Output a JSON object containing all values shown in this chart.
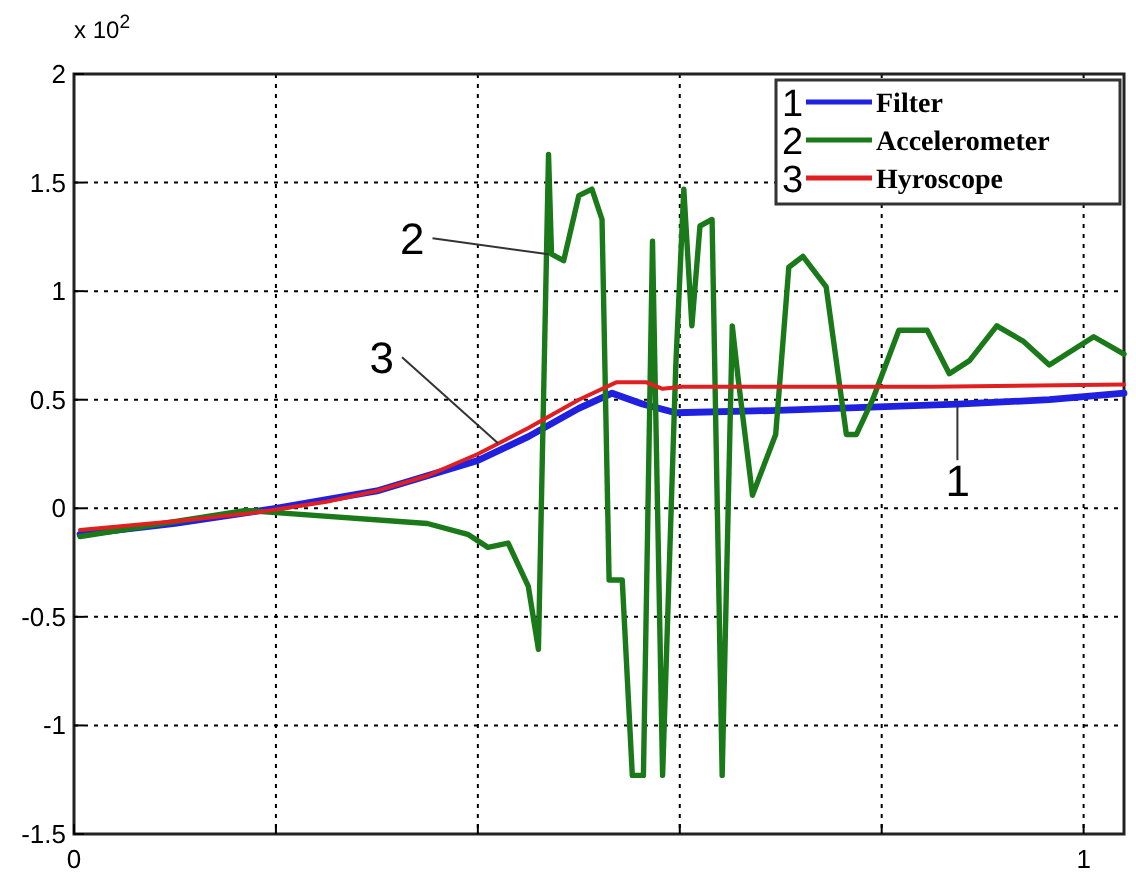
{
  "chart_data": {
    "type": "line",
    "xlim": [
      0,
      1.04
    ],
    "ylim": [
      -1.5,
      2
    ],
    "xticks": [
      0,
      {
        "value": 0.2,
        "label": null
      },
      {
        "value": 0.4,
        "label": null
      },
      {
        "value": 0.6,
        "label": null
      },
      {
        "value": 0.8,
        "label": null
      },
      1
    ],
    "yticks": [
      -1.5,
      -1,
      -0.5,
      0,
      0.5,
      1,
      1.5,
      2
    ],
    "grid": true,
    "legend": "top right",
    "line_style": "solid",
    "annotations": [
      "x 10$^{2}$",
      {
        "text": "1",
        "x": 0.875,
        "y": 0.47
      },
      {
        "text": "2",
        "x": 0.47,
        "y": 1.17
      },
      {
        "text": "3",
        "x": 0.42,
        "y": 0.3
      }
    ],
    "series": [
      {
        "name": "Filter",
        "color": "#2020e0",
        "x": [
          0.006,
          0.1,
          0.2,
          0.3,
          0.4,
          0.45,
          0.5,
          0.533,
          0.563,
          0.596,
          0.69,
          0.875,
          0.966,
          1.04
        ],
        "values": [
          -0.12,
          -0.07,
          0.0,
          0.08,
          0.22,
          0.33,
          0.46,
          0.53,
          0.48,
          0.44,
          0.45,
          0.48,
          0.5,
          0.53
        ]
      },
      {
        "name": "Accelerometer",
        "color": "#1a7a1a",
        "x": [
          0.006,
          0.17,
          0.2,
          0.35,
          0.39,
          0.41,
          0.43,
          0.45,
          0.46,
          0.47,
          0.473,
          0.485,
          0.5,
          0.513,
          0.523,
          0.53,
          0.543,
          0.553,
          0.564,
          0.573,
          0.583,
          0.596,
          0.604,
          0.612,
          0.62,
          0.632,
          0.642,
          0.652,
          0.658,
          0.672,
          0.695,
          0.708,
          0.722,
          0.745,
          0.765,
          0.775,
          0.791,
          0.817,
          0.845,
          0.867,
          0.887,
          0.914,
          0.94,
          0.966,
          1.01,
          1.04
        ],
        "values": [
          -0.13,
          -0.01,
          -0.02,
          -0.07,
          -0.12,
          -0.18,
          -0.16,
          -0.36,
          -0.65,
          1.63,
          1.17,
          1.14,
          1.44,
          1.47,
          1.33,
          -0.33,
          -0.33,
          -1.23,
          -1.23,
          1.23,
          -1.23,
          0.65,
          1.47,
          0.84,
          1.3,
          1.33,
          -1.23,
          0.84,
          0.59,
          0.06,
          0.34,
          1.11,
          1.16,
          1.02,
          0.34,
          0.34,
          0.5,
          0.82,
          0.82,
          0.62,
          0.68,
          0.84,
          0.77,
          0.66,
          0.79,
          0.71
        ]
      },
      {
        "name": "Hyroscope",
        "color": "#e02020",
        "x": [
          0.006,
          0.1,
          0.18,
          0.25,
          0.3,
          0.35,
          0.4,
          0.45,
          0.5,
          0.537,
          0.567,
          0.583,
          0.602,
          0.7,
          0.85,
          1.04
        ],
        "values": [
          -0.1,
          -0.06,
          -0.02,
          0.03,
          0.08,
          0.15,
          0.25,
          0.37,
          0.5,
          0.58,
          0.58,
          0.55,
          0.56,
          0.56,
          0.56,
          0.57
        ]
      }
    ]
  }
}
